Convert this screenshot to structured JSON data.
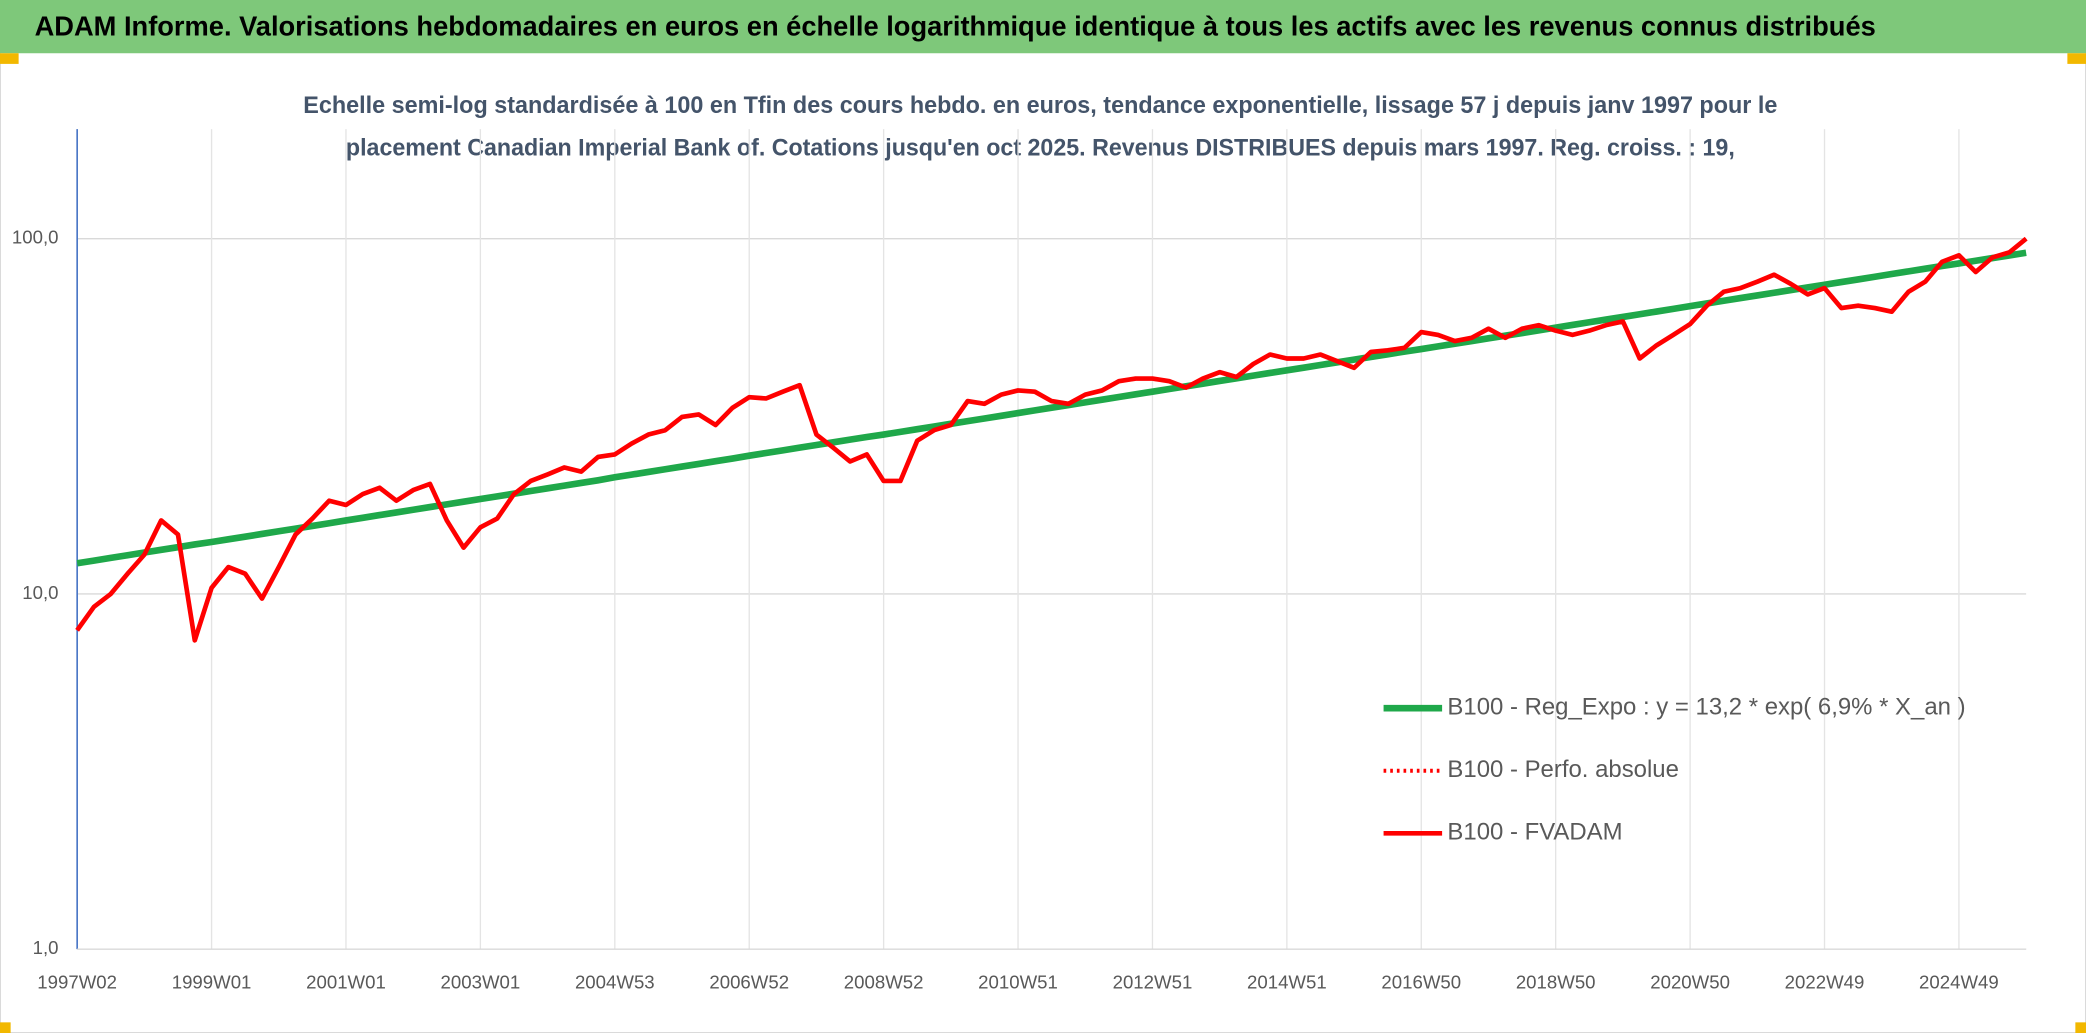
{
  "chart_data": {
    "type": "line",
    "title": "ADAM Informe. Valorisations hebdomadaires en euros en échelle logarithmique identique à tous les actifs avec les revenus connus distribués",
    "subtitle": [
      "Echelle semi-log standardisée à 100 en Tfin des cours hebdo. en euros, tendance exponentielle, lissage 57 j depuis janv 1997 pour le",
      "placement Canadian Imperial Bank of. Cotations jusqu'en oct 2025. Revenus DISTRIBUES depuis mars 1997. Reg. croiss. : 19,"
    ],
    "log_scale": true,
    "grid": true,
    "legend": "lower right",
    "ylim": [
      1,
      200
    ],
    "yticks": [
      {
        "value": 1,
        "label": "1,0"
      },
      {
        "value": 10,
        "label": "10,0"
      },
      {
        "value": 100,
        "label": "100,0"
      }
    ],
    "categories": [
      "1997W02",
      null,
      null,
      null,
      null,
      null,
      null,
      null,
      "1999W01",
      null,
      null,
      null,
      null,
      null,
      null,
      null,
      "2001W01",
      null,
      null,
      null,
      null,
      null,
      null,
      null,
      "2003W01",
      null,
      null,
      null,
      null,
      null,
      null,
      null,
      "2004W53",
      null,
      null,
      null,
      null,
      null,
      null,
      null,
      "2006W52",
      null,
      null,
      null,
      null,
      null,
      null,
      null,
      "2008W52",
      null,
      null,
      null,
      null,
      null,
      null,
      null,
      "2010W51",
      null,
      null,
      null,
      null,
      null,
      null,
      null,
      "2012W51",
      null,
      null,
      null,
      null,
      null,
      null,
      null,
      "2014W51",
      null,
      null,
      null,
      null,
      null,
      null,
      null,
      "2016W50",
      null,
      null,
      null,
      null,
      null,
      null,
      null,
      "2018W50",
      null,
      null,
      null,
      null,
      null,
      null,
      null,
      "2020W50",
      null,
      null,
      null,
      null,
      null,
      null,
      null,
      "2022W49",
      null,
      null,
      null,
      null,
      null,
      null,
      null,
      "2024W49",
      null,
      null,
      null,
      null
    ],
    "series": [
      {
        "name": "B100 - Reg_Expo : y = 13,2 * exp( 6,9% *  X_an )",
        "color": "#1fa84a",
        "style": "solid",
        "values": [
          12.2,
          12.41,
          12.63,
          12.85,
          13.08,
          13.31,
          13.54,
          13.78,
          14.0,
          14.25,
          14.49,
          14.75,
          15.01,
          15.27,
          15.54,
          15.81,
          16.1,
          16.38,
          16.67,
          16.96,
          17.26,
          17.56,
          17.87,
          18.18,
          18.5,
          18.82,
          19.15,
          19.49,
          19.83,
          20.18,
          20.53,
          20.89,
          21.3,
          21.67,
          22.05,
          22.44,
          22.83,
          23.23,
          23.64,
          24.05,
          24.5,
          24.93,
          25.36,
          25.81,
          26.26,
          26.72,
          27.19,
          27.66,
          28.1,
          28.59,
          29.09,
          29.6,
          30.12,
          30.65,
          31.18,
          31.73,
          32.3,
          32.87,
          33.44,
          34.02,
          34.62,
          35.23,
          35.84,
          36.47,
          37.1,
          37.75,
          38.41,
          39.08,
          39.77,
          40.46,
          41.17,
          41.89,
          42.6,
          43.35,
          44.1,
          44.88,
          45.66,
          46.46,
          47.27,
          48.1,
          48.9,
          49.76,
          50.63,
          51.51,
          52.42,
          53.33,
          54.26,
          55.21,
          56.2,
          57.18,
          58.18,
          59.2,
          60.24,
          61.29,
          62.36,
          63.46,
          64.6,
          65.73,
          66.88,
          68.05,
          69.25,
          70.45,
          71.69,
          72.94,
          74.2,
          75.5,
          76.82,
          78.16,
          79.54,
          80.92,
          82.34,
          83.78,
          85.2,
          86.69,
          88.21,
          89.75,
          91.32
        ]
      },
      {
        "name": "B100 - Perfo. absolue",
        "color": "#ff0000",
        "style": "dotted",
        "values": [
          7.9,
          9.2,
          10,
          11.4,
          12.9,
          16.1,
          14.7,
          7.4,
          10.4,
          11.9,
          11.4,
          9.7,
          11.9,
          14.7,
          16.3,
          18.3,
          17.8,
          19.1,
          19.9,
          18.3,
          19.6,
          20.4,
          16.1,
          13.5,
          15.4,
          16.3,
          19.1,
          20.8,
          21.7,
          22.7,
          22.1,
          24.3,
          24.7,
          26.5,
          28.1,
          28.9,
          31.5,
          32.0,
          29.9,
          33.4,
          35.8,
          35.5,
          37.1,
          38.7,
          28.1,
          25.8,
          23.6,
          24.7,
          20.8,
          20.8,
          27.0,
          28.9,
          29.9,
          34.9,
          34.3,
          36.4,
          37.4,
          37.1,
          34.9,
          34.3,
          36.4,
          37.4,
          39.7,
          40.4,
          40.4,
          39.7,
          38.1,
          40.4,
          42.1,
          40.8,
          44.4,
          47.2,
          46.0,
          46.0,
          47.2,
          45.2,
          43.3,
          48.0,
          48.5,
          49.3,
          54.6,
          53.6,
          51.5,
          52.6,
          55.8,
          52.6,
          55.8,
          57.1,
          55.1,
          53.6,
          55.1,
          57.1,
          58.5,
          46.0,
          50.1,
          53.6,
          57.5,
          64.8,
          70.9,
          72.6,
          75.7,
          79.2,
          74.6,
          69.7,
          72.6,
          63.8,
          64.8,
          63.8,
          62.3,
          70.9,
          75.7,
          86.1,
          89.8,
          80.6,
          88.6,
          91.5,
          100
        ]
      },
      {
        "name": "B100 - FVADAM",
        "color": "#ff0000",
        "style": "solid",
        "values": [
          7.9,
          9.2,
          10,
          11.4,
          12.9,
          16.1,
          14.7,
          7.4,
          10.4,
          11.9,
          11.4,
          9.7,
          11.9,
          14.7,
          16.3,
          18.3,
          17.8,
          19.1,
          19.9,
          18.3,
          19.6,
          20.4,
          16.1,
          13.5,
          15.4,
          16.3,
          19.1,
          20.8,
          21.7,
          22.7,
          22.1,
          24.3,
          24.7,
          26.5,
          28.1,
          28.9,
          31.5,
          32.0,
          29.9,
          33.4,
          35.8,
          35.5,
          37.1,
          38.7,
          28.1,
          25.8,
          23.6,
          24.7,
          20.8,
          20.8,
          27.0,
          28.9,
          29.9,
          34.9,
          34.3,
          36.4,
          37.4,
          37.1,
          34.9,
          34.3,
          36.4,
          37.4,
          39.7,
          40.4,
          40.4,
          39.7,
          38.1,
          40.4,
          42.1,
          40.8,
          44.4,
          47.2,
          46.0,
          46.0,
          47.2,
          45.2,
          43.3,
          48.0,
          48.5,
          49.3,
          54.6,
          53.6,
          51.5,
          52.6,
          55.8,
          52.6,
          55.8,
          57.1,
          55.1,
          53.6,
          55.1,
          57.1,
          58.5,
          46.0,
          50.1,
          53.6,
          57.5,
          64.8,
          70.9,
          72.6,
          75.7,
          79.2,
          74.6,
          69.7,
          72.6,
          63.8,
          64.8,
          63.8,
          62.3,
          70.9,
          75.7,
          86.1,
          89.8,
          80.6,
          88.6,
          91.5,
          100
        ]
      }
    ]
  }
}
